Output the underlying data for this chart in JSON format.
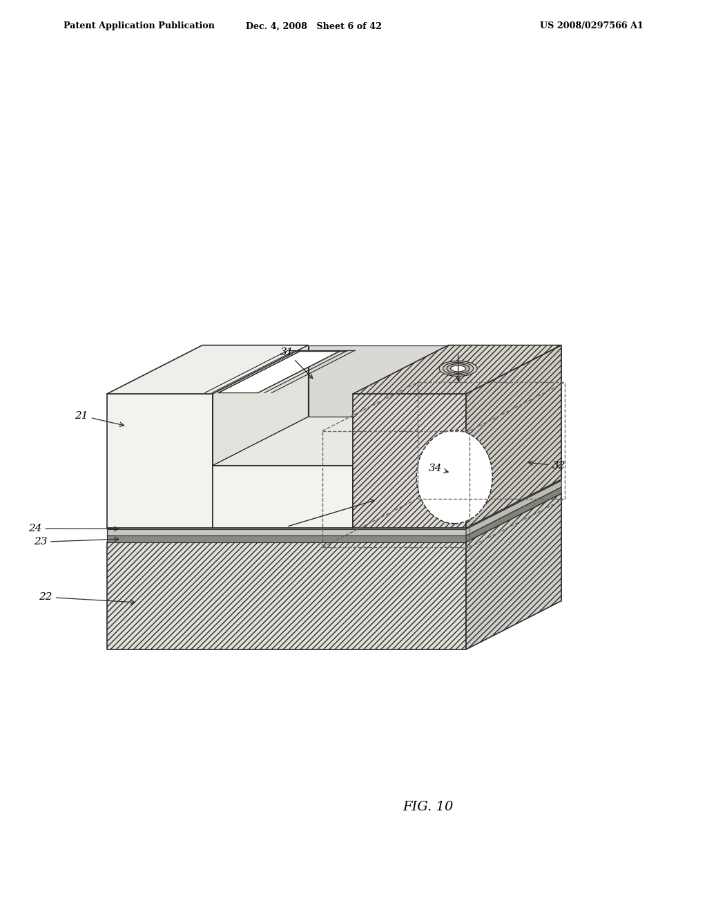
{
  "header_left": "Patent Application Publication",
  "header_mid": "Dec. 4, 2008   Sheet 6 of 42",
  "header_right": "US 2008/0297566 A1",
  "figure_label": "FIG. 10",
  "bg_color": "#ffffff",
  "line_color": "#2a2a2a",
  "sub_hatch": "////",
  "sub_face_color": "#e0e0d8",
  "sub_top_color": "#d8d8d0",
  "sub_right_color": "#d0d0c8",
  "body_face_color": "#f2f2ee",
  "body_top_color": "#eeeeea",
  "noz_hatch_color": "#dedad4",
  "slot_floor_color": "#e8e8e4",
  "slot_wall_color": "#dededa",
  "lw_main": 1.2,
  "lw_thin": 0.9,
  "lw_dash": 1.0,
  "label_fontsize": 11,
  "fig_label_fontsize": 14
}
